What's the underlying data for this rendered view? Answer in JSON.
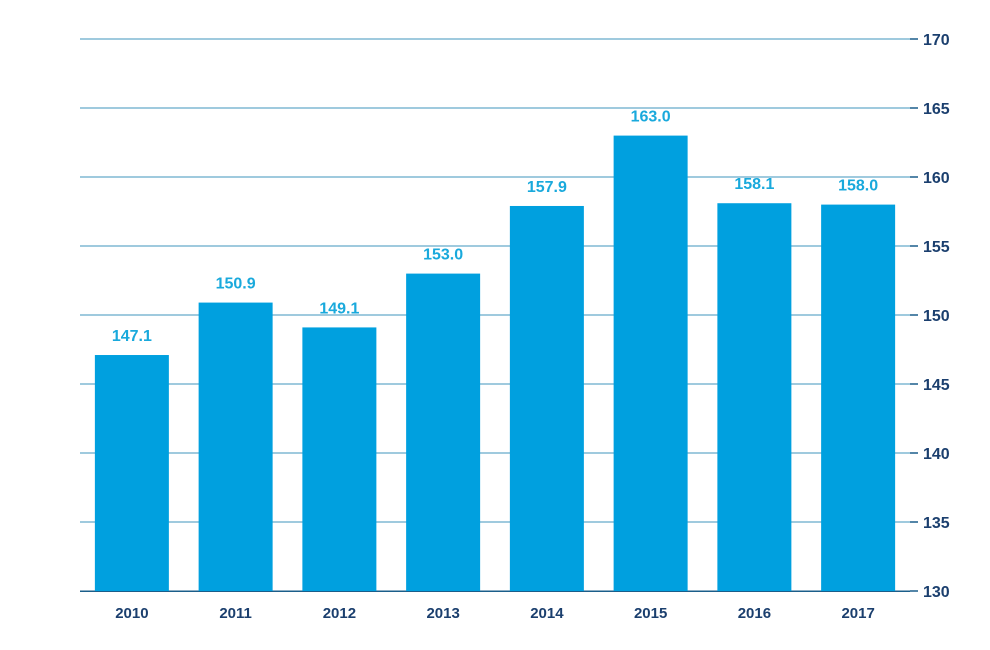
{
  "chart_data": {
    "type": "bar",
    "title": "",
    "xlabel": "",
    "ylabel": "",
    "categories": [
      "2010",
      "2011",
      "2012",
      "2013",
      "2014",
      "2015",
      "2016",
      "2017"
    ],
    "values": [
      147.1,
      150.9,
      149.1,
      153.0,
      157.9,
      163.0,
      158.1,
      158.0
    ],
    "data_labels": [
      "147.1",
      "150.9",
      "149.1",
      "153.0",
      "157.9",
      "163.0",
      "158.1",
      "158.0"
    ],
    "ylim": [
      130,
      170
    ],
    "y_ticks": [
      130,
      135,
      140,
      145,
      150,
      155,
      160,
      165,
      170
    ],
    "y_axis_side": "right",
    "grid": true,
    "colors": {
      "bar": "#00a0df",
      "data_label": "#19a9dc",
      "axis_text": "#1b3f6e",
      "grid": "#3f95be"
    }
  }
}
